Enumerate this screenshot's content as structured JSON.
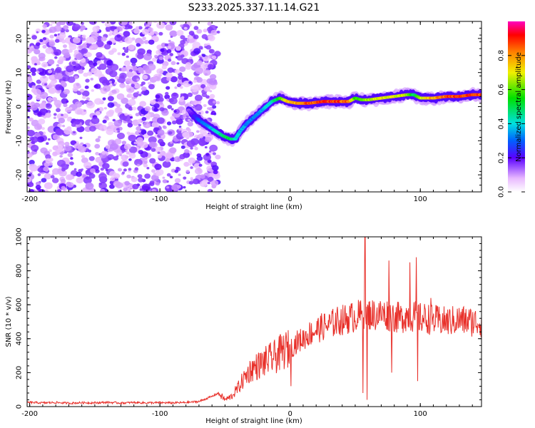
{
  "figure_title": "S233.2025.337.11.14.G21",
  "colors": {
    "snr_line": "#e8302a",
    "axis": "#000000"
  },
  "chart_data": [
    {
      "type": "heatmap",
      "title": "S233.2025.337.11.14.G21",
      "xlabel": "Height of straight line (km)",
      "ylabel": "Frequency (Hz)",
      "xlim": [
        -202,
        147
      ],
      "ylim": [
        -25,
        25
      ],
      "xticks": [
        -200,
        -100,
        0,
        100
      ],
      "xtick_labels": [
        "-200",
        "-100",
        "0",
        "100"
      ],
      "yticks": [
        20,
        10,
        0,
        -10,
        -20
      ],
      "ytick_labels": [
        "20",
        "10",
        "0",
        "-10",
        "-20"
      ],
      "colorbar": {
        "label": "Normalized spectral amplitude",
        "range": [
          0,
          1
        ],
        "ticks": [
          0.0,
          0.2,
          0.4,
          0.6,
          0.8
        ],
        "tick_labels": [
          "0.0",
          "0.2",
          "0.4",
          "0.6",
          "0.8"
        ]
      },
      "noise_region_x": [
        -202,
        -55
      ],
      "ridge": {
        "x": [
          -78,
          -70,
          -60,
          -52,
          -46,
          -42,
          -38,
          -32,
          -26,
          -20,
          -14,
          -8,
          -2,
          5,
          15,
          25,
          35,
          45,
          50,
          55,
          60,
          70,
          80,
          90,
          95,
          100,
          110,
          120,
          130,
          140,
          147
        ],
        "freq_hz": [
          -1,
          -4,
          -6.5,
          -8.5,
          -9.5,
          -9.5,
          -7,
          -4.5,
          -2.5,
          -0.5,
          1.5,
          2.5,
          1.5,
          1,
          1,
          1.5,
          1.5,
          1.5,
          2.5,
          2,
          2,
          2.5,
          3,
          3.5,
          3.5,
          2.5,
          2.5,
          3,
          3,
          3.5,
          3.5
        ],
        "amplitude": [
          0.15,
          0.3,
          0.4,
          0.5,
          0.55,
          0.45,
          0.4,
          0.35,
          0.35,
          0.4,
          0.45,
          0.6,
          0.8,
          0.85,
          0.9,
          0.95,
          0.95,
          0.9,
          0.6,
          0.65,
          0.7,
          0.75,
          0.75,
          0.7,
          0.5,
          0.7,
          0.85,
          0.9,
          0.95,
          0.95,
          0.9
        ]
      }
    },
    {
      "type": "line",
      "xlabel": "Height of straight line (km)",
      "ylabel": "SNR (10 * v/v)",
      "xlim": [
        -202,
        147
      ],
      "ylim": [
        0,
        1000
      ],
      "xticks": [
        -200,
        -100,
        0,
        100
      ],
      "xtick_labels": [
        "-200",
        "-100",
        "0",
        "100"
      ],
      "yticks": [
        0,
        200,
        400,
        600,
        800,
        1000
      ],
      "ytick_labels": [
        "0",
        "200",
        "400",
        "600",
        "800",
        "1000"
      ],
      "series": [
        {
          "name": "SNR",
          "x": [
            -202,
            -190,
            -180,
            -170,
            -160,
            -150,
            -140,
            -130,
            -120,
            -110,
            -100,
            -90,
            -80,
            -70,
            -65,
            -60,
            -55,
            -50,
            -45,
            -40,
            -35,
            -30,
            -25,
            -20,
            -15,
            -10,
            -5,
            0,
            5,
            10,
            15,
            20,
            25,
            30,
            35,
            40,
            45,
            50,
            55,
            57,
            59,
            61,
            65,
            70,
            75,
            80,
            85,
            90,
            95,
            100,
            105,
            110,
            120,
            130,
            140,
            147
          ],
          "y": [
            25,
            22,
            24,
            20,
            23,
            22,
            25,
            21,
            24,
            22,
            23,
            22,
            24,
            30,
            45,
            60,
            80,
            40,
            60,
            110,
            170,
            220,
            240,
            260,
            280,
            300,
            330,
            340,
            380,
            400,
            430,
            450,
            470,
            480,
            500,
            510,
            520,
            530,
            540,
            545,
            540,
            545,
            540,
            545,
            540,
            530,
            520,
            540,
            530,
            520,
            520,
            510,
            500,
            510,
            500,
            495
          ]
        }
      ],
      "spikes": [
        {
          "x": 0.5,
          "y": 120
        },
        {
          "x": 56,
          "y": 80
        },
        {
          "x": 57.5,
          "y": 1000
        },
        {
          "x": 59,
          "y": 40
        },
        {
          "x": 76,
          "y": 860
        },
        {
          "x": 78,
          "y": 200
        },
        {
          "x": 92,
          "y": 850
        },
        {
          "x": 97,
          "y": 880
        },
        {
          "x": 98,
          "y": 150
        },
        {
          "x": 108,
          "y": 640
        }
      ]
    }
  ]
}
